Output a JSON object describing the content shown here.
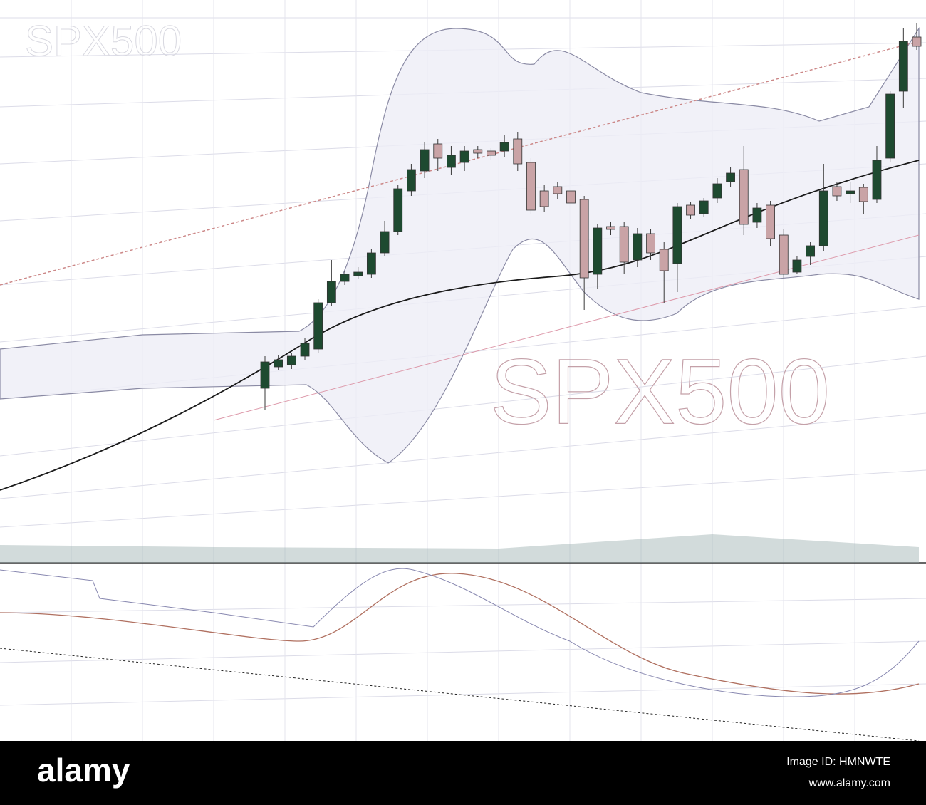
{
  "chart_data": {
    "type": "candlestick",
    "labels": [
      "SPX500",
      "SPX500"
    ],
    "categories": [
      null,
      null,
      null,
      null,
      null,
      null,
      null,
      null,
      null,
      null,
      null,
      null,
      null,
      null,
      null,
      null,
      null,
      null,
      null,
      null,
      null,
      null,
      null,
      null,
      null,
      null,
      null,
      null,
      null,
      null,
      null,
      null,
      null,
      null,
      null,
      null,
      null,
      null,
      null,
      null,
      null,
      null,
      null,
      null,
      null,
      null,
      null,
      null,
      null,
      null
    ],
    "open": [
      495,
      525,
      528,
      540,
      550,
      615,
      645,
      653,
      655,
      685,
      715,
      772,
      800,
      838,
      805,
      812,
      830,
      828,
      828,
      845,
      812,
      772,
      778,
      772,
      760,
      655,
      722,
      722,
      675,
      712,
      690,
      670,
      752,
      740,
      762,
      785,
      802,
      728,
      752,
      710,
      658,
      680,
      695,
      778,
      768,
      777,
      760,
      818,
      912,
      988
    ],
    "high": [
      540,
      542,
      545,
      565,
      620,
      675,
      660,
      665,
      690,
      730,
      780,
      810,
      840,
      845,
      835,
      835,
      835,
      832,
      850,
      855,
      818,
      780,
      785,
      782,
      765,
      725,
      728,
      728,
      720,
      718,
      700,
      755,
      757,
      762,
      790,
      805,
      835,
      755,
      758,
      718,
      680,
      700,
      810,
      785,
      785,
      782,
      835,
      912,
      1000,
      1008
    ],
    "low": [
      465,
      520,
      522,
      535,
      545,
      610,
      640,
      648,
      650,
      680,
      710,
      765,
      790,
      800,
      795,
      800,
      818,
      815,
      820,
      800,
      740,
      742,
      760,
      740,
      605,
      635,
      710,
      655,
      665,
      675,
      615,
      630,
      732,
      735,
      755,
      778,
      710,
      720,
      695,
      650,
      655,
      668,
      688,
      758,
      755,
      740,
      755,
      812,
      888,
      970
    ],
    "close": [
      532,
      535,
      540,
      558,
      615,
      645,
      655,
      658,
      685,
      715,
      775,
      802,
      830,
      818,
      822,
      828,
      825,
      822,
      840,
      810,
      745,
      750,
      768,
      755,
      650,
      720,
      718,
      672,
      712,
      685,
      660,
      750,
      738,
      758,
      782,
      797,
      725,
      748,
      705,
      655,
      675,
      695,
      772,
      765,
      772,
      757,
      815,
      908,
      982,
      975
    ],
    "up_color": "#1e4a30",
    "down_color": "#c9a3a6",
    "ylim": [
      0,
      1040
    ],
    "grid": true
  },
  "footer": {
    "brand": "alamy",
    "image_id": "Image ID: HMNWTE",
    "url": "www.alamy.com"
  }
}
